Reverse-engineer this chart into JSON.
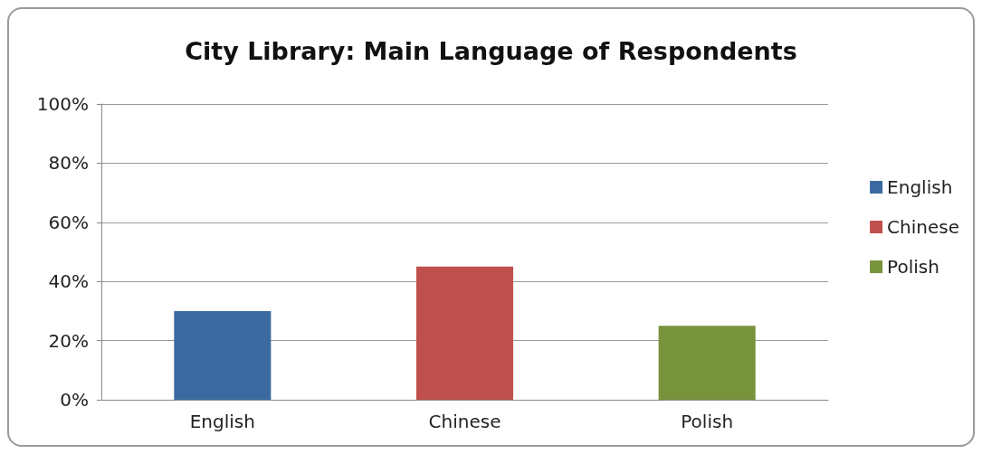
{
  "chart_data": {
    "type": "bar",
    "title": "City Library: Main Language of Respondents",
    "categories": [
      "English",
      "Chinese",
      "Polish"
    ],
    "series": [
      {
        "name": "English",
        "color": "#3b6aa0",
        "values": [
          30,
          null,
          null
        ]
      },
      {
        "name": "Chinese",
        "color": "#c0504d",
        "values": [
          null,
          45,
          null
        ]
      },
      {
        "name": "Polish",
        "color": "#77933c",
        "values": [
          null,
          null,
          25
        ]
      }
    ],
    "ylim": [
      0,
      100
    ],
    "yticks": [
      {
        "value": 0,
        "label": "0%"
      },
      {
        "value": 20,
        "label": "20%"
      },
      {
        "value": 40,
        "label": "40%"
      },
      {
        "value": 60,
        "label": "60%"
      },
      {
        "value": 80,
        "label": "80%"
      },
      {
        "value": 100,
        "label": "100%"
      }
    ],
    "grid": "y",
    "legend": "right"
  }
}
